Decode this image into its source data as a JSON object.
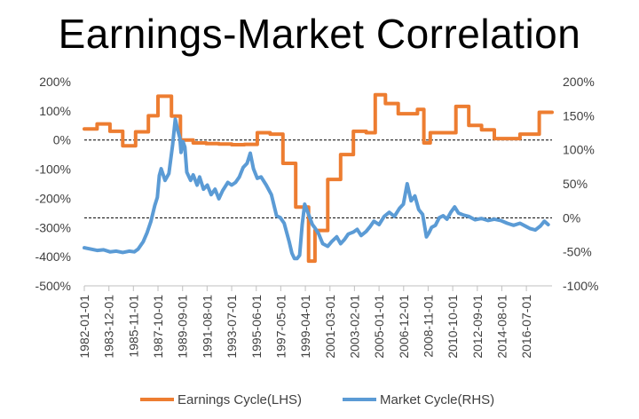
{
  "chart_data": {
    "type": "line",
    "title": "Earnings-Market Correlation",
    "y_left_ticks": [
      "200%",
      "100%",
      "0%",
      "-100%",
      "-200%",
      "-300%",
      "-400%",
      "-500%"
    ],
    "y_left_range": [
      -500,
      200
    ],
    "y_right_ticks": [
      "200%",
      "150%",
      "100%",
      "50%",
      "0%",
      "-50%",
      "-100%"
    ],
    "y_right_range": [
      -100,
      200
    ],
    "x_range": [
      1982.0,
      2018.5
    ],
    "x_tick_labels": [
      "1982-01-01",
      "1983-12-01",
      "1985-11-01",
      "1987-10-01",
      "1989-09-01",
      "1991-08-01",
      "1993-07-01",
      "1995-06-01",
      "1997-05-01",
      "1999-04-01",
      "2001-03-01",
      "2003-02-01",
      "2005-01-01",
      "2006-12-01",
      "2008-11-01",
      "2010-10-01",
      "2012-09-01",
      "2014-08-01",
      "2016-07-01"
    ],
    "x_tick_values": [
      1982.0,
      1983.92,
      1985.83,
      1987.75,
      1989.67,
      1991.58,
      1993.5,
      1995.42,
      1997.33,
      1999.25,
      2001.17,
      2003.08,
      2005.0,
      2006.92,
      2008.83,
      2010.75,
      2012.67,
      2014.58,
      2016.5
    ],
    "reference_lines": [
      {
        "axis": "left",
        "value": 0
      },
      {
        "axis": "right",
        "value": 0
      }
    ],
    "legend_position": "bottom",
    "grid": false,
    "series": [
      {
        "name": "Earnings Cycle(LHS)",
        "axis": "left",
        "color": "#ED7D31",
        "step": true,
        "x": [
          1982.0,
          1983.0,
          1984.0,
          1985.0,
          1986.0,
          1987.0,
          1987.75,
          1988.8,
          1989.5,
          1990.5,
          1991.5,
          1992.5,
          1993.5,
          1994.5,
          1995.5,
          1996.5,
          1997.5,
          1998.5,
          1999.5,
          2000.0,
          2001.0,
          2002.0,
          2003.0,
          2004.0,
          2004.7,
          2005.5,
          2006.5,
          2007.0,
          2008.0,
          2008.5,
          2009.0,
          2010.0,
          2011.0,
          2012.0,
          2013.0,
          2014.0,
          2015.0,
          2016.0,
          2017.0,
          2017.5,
          2018.2
        ],
        "values": [
          38,
          55,
          30,
          -20,
          28,
          83,
          150,
          82,
          0,
          -10,
          -12,
          -14,
          -16,
          -15,
          25,
          20,
          -80,
          -230,
          -415,
          -310,
          -135,
          -50,
          30,
          25,
          155,
          125,
          90,
          90,
          105,
          -10,
          25,
          25,
          115,
          50,
          35,
          5,
          5,
          20,
          20,
          95,
          95
        ]
      },
      {
        "name": "Market Cycle(RHS)",
        "axis": "right",
        "color": "#5B9BD5",
        "step": false,
        "x": [
          1982.0,
          1982.5,
          1983.0,
          1983.5,
          1984.0,
          1984.5,
          1985.0,
          1985.5,
          1985.9,
          1986.2,
          1986.6,
          1986.9,
          1987.2,
          1987.5,
          1987.7,
          1987.85,
          1988.0,
          1988.3,
          1988.6,
          1988.9,
          1989.1,
          1989.3,
          1989.45,
          1989.55,
          1989.7,
          1989.85,
          1990.0,
          1990.3,
          1990.5,
          1990.8,
          1991.0,
          1991.3,
          1991.6,
          1991.9,
          1992.2,
          1992.5,
          1992.8,
          1993.2,
          1993.5,
          1993.8,
          1994.1,
          1994.4,
          1994.7,
          1994.95,
          1995.2,
          1995.5,
          1995.8,
          1996.2,
          1996.6,
          1997.0,
          1997.3,
          1997.6,
          1997.8,
          1998.0,
          1998.2,
          1998.4,
          1998.6,
          1998.8,
          1999.0,
          1999.2,
          1999.5,
          1999.8,
          2000.0,
          2000.3,
          2000.6,
          2001.0,
          2001.3,
          2001.7,
          2002.0,
          2002.3,
          2002.6,
          2003.0,
          2003.3,
          2003.6,
          2004.0,
          2004.3,
          2004.6,
          2005.0,
          2005.4,
          2005.8,
          2006.2,
          2006.6,
          2006.9,
          2007.2,
          2007.5,
          2007.8,
          2008.1,
          2008.4,
          2008.7,
          2008.9,
          2009.1,
          2009.4,
          2009.7,
          2010.0,
          2010.3,
          2010.6,
          2010.9,
          2011.2,
          2011.6,
          2012.0,
          2012.5,
          2013.0,
          2013.5,
          2014.0,
          2014.5,
          2015.0,
          2015.5,
          2016.0,
          2016.5,
          2016.8,
          2017.2,
          2017.6,
          2017.9,
          2018.2
        ],
        "values": [
          -44,
          -46,
          -48,
          -47,
          -50,
          -49,
          -51,
          -49,
          -50,
          -46,
          -35,
          -22,
          -5,
          18,
          30,
          62,
          72,
          55,
          65,
          108,
          145,
          128,
          118,
          96,
          112,
          104,
          67,
          55,
          63,
          48,
          60,
          42,
          48,
          34,
          42,
          28,
          40,
          52,
          48,
          52,
          60,
          74,
          80,
          95,
          72,
          58,
          60,
          48,
          34,
          3,
          0,
          -8,
          -22,
          -36,
          -52,
          -60,
          -60,
          -55,
          -10,
          20,
          5,
          -10,
          -15,
          -24,
          -38,
          -42,
          -35,
          -28,
          -38,
          -32,
          -24,
          -21,
          -17,
          -26,
          -20,
          -13,
          -5,
          -10,
          2,
          8,
          2,
          14,
          20,
          50,
          25,
          32,
          12,
          5,
          -28,
          -22,
          -14,
          -11,
          0,
          3,
          -2,
          8,
          16,
          7,
          4,
          2,
          -3,
          -1,
          -4,
          -2,
          -4,
          -8,
          -11,
          -8,
          -13,
          -16,
          -18,
          -12,
          -5,
          -10
        ]
      }
    ]
  }
}
